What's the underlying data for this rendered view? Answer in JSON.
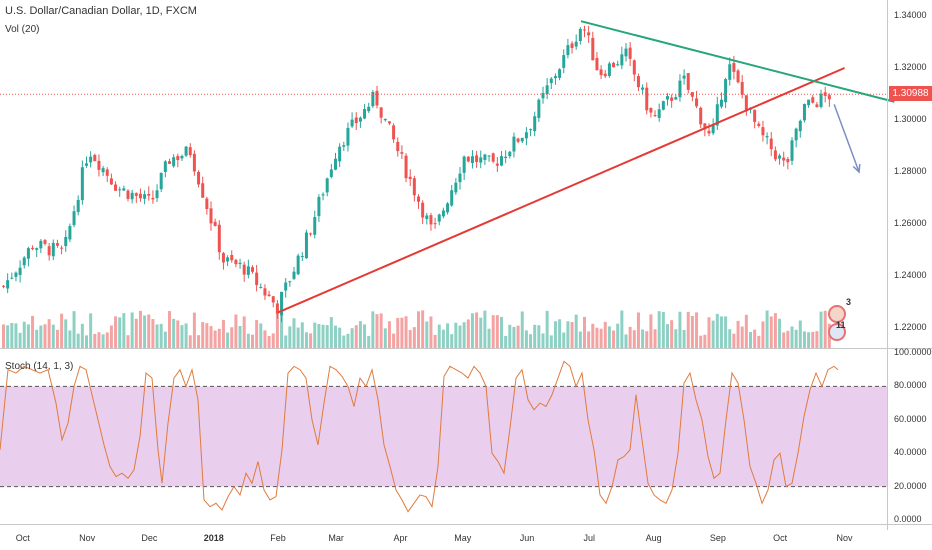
{
  "header": {
    "title": "U.S. Dollar/Canadian Dollar, 1D, FXCM",
    "volume_label": "Vol (20)",
    "stoch_label": "Stoch (14, 1, 3)"
  },
  "price_badge": "1.30988",
  "events": {
    "ca_count": "3",
    "us_count": "11"
  },
  "chart_data": [
    {
      "type": "candlestick",
      "title": "U.S. Dollar/Canadian Dollar, 1D, FXCM",
      "y_ticks": [
        "1.34000",
        "1.32000",
        "1.30000",
        "1.28000",
        "1.26000",
        "1.24000",
        "1.22000"
      ],
      "x_ticks": [
        "Oct",
        "Nov",
        "Dec",
        "2018",
        "Feb",
        "Mar",
        "Apr",
        "May",
        "Jun",
        "Jul",
        "Aug",
        "Sep",
        "Oct",
        "Nov"
      ],
      "ylim": [
        1.215,
        1.345
      ],
      "last_price": 1.30988,
      "approx_closes": [
        {
          "date": "2017-09-20",
          "close": 1.235
        },
        {
          "date": "2017-10-05",
          "close": 1.252
        },
        {
          "date": "2017-10-20",
          "close": 1.249
        },
        {
          "date": "2017-11-01",
          "close": 1.289
        },
        {
          "date": "2017-11-15",
          "close": 1.274
        },
        {
          "date": "2017-12-01",
          "close": 1.268
        },
        {
          "date": "2017-12-10",
          "close": 1.285
        },
        {
          "date": "2017-12-20",
          "close": 1.288
        },
        {
          "date": "2018-01-05",
          "close": 1.246
        },
        {
          "date": "2018-01-15",
          "close": 1.243
        },
        {
          "date": "2018-01-31",
          "close": 1.228
        },
        {
          "date": "2018-02-15",
          "close": 1.256
        },
        {
          "date": "2018-03-01",
          "close": 1.29
        },
        {
          "date": "2018-03-19",
          "close": 1.309
        },
        {
          "date": "2018-03-30",
          "close": 1.288
        },
        {
          "date": "2018-04-16",
          "close": 1.256
        },
        {
          "date": "2018-05-01",
          "close": 1.286
        },
        {
          "date": "2018-05-15",
          "close": 1.283
        },
        {
          "date": "2018-06-01",
          "close": 1.297
        },
        {
          "date": "2018-06-10",
          "close": 1.312
        },
        {
          "date": "2018-06-27",
          "close": 1.337
        },
        {
          "date": "2018-07-05",
          "close": 1.318
        },
        {
          "date": "2018-07-18",
          "close": 1.325
        },
        {
          "date": "2018-07-31",
          "close": 1.3
        },
        {
          "date": "2018-08-15",
          "close": 1.315
        },
        {
          "date": "2018-08-28",
          "close": 1.292
        },
        {
          "date": "2018-09-05",
          "close": 1.322
        },
        {
          "date": "2018-09-20",
          "close": 1.295
        },
        {
          "date": "2018-10-03",
          "close": 1.282
        },
        {
          "date": "2018-10-12",
          "close": 1.305
        },
        {
          "date": "2018-10-25",
          "close": 1.30988
        }
      ],
      "trendlines": [
        {
          "color": "#e53935",
          "from": {
            "date": "2018-02-01",
            "price": 1.226
          },
          "to": {
            "date": "2018-11-01",
            "price": 1.32
          }
        },
        {
          "color": "#26a67a",
          "from": {
            "date": "2018-06-27",
            "price": 1.338
          },
          "to": {
            "date": "2018-11-25",
            "price": 1.307
          }
        }
      ],
      "arrow": {
        "color": "#7b8fc4",
        "from": {
          "date": "2018-10-27",
          "price": 1.306
        },
        "to": {
          "date": "2018-11-08",
          "price": 1.28
        }
      },
      "horizontal_line": {
        "price": 1.30988,
        "color": "#ef5350",
        "style": "dotted"
      },
      "volume": {
        "label": "Vol (20)",
        "up_color": "#8ed1c4",
        "down_color": "#f4a3a3"
      }
    },
    {
      "type": "line",
      "title": "Stoch (14, 1, 3)",
      "y_ticks": [
        "100.0000",
        "80.0000",
        "60.0000",
        "40.0000",
        "20.0000",
        "0.0000"
      ],
      "ylim": [
        0,
        100
      ],
      "bands": {
        "upper": 80,
        "lower": 20,
        "fill": "#e1bee7"
      },
      "series": [
        {
          "color": "#e07b3e",
          "values": [
            [
              0,
              42
            ],
            [
              8,
              90
            ],
            [
              16,
              88
            ],
            [
              24,
              92
            ],
            [
              32,
              90
            ],
            [
              40,
              88
            ],
            [
              48,
              90
            ],
            [
              56,
              70
            ],
            [
              62,
              48
            ],
            [
              68,
              58
            ],
            [
              74,
              80
            ],
            [
              80,
              92
            ],
            [
              86,
              90
            ],
            [
              92,
              75
            ],
            [
              98,
              60
            ],
            [
              104,
              45
            ],
            [
              110,
              32
            ],
            [
              116,
              26
            ],
            [
              122,
              28
            ],
            [
              128,
              25
            ],
            [
              134,
              30
            ],
            [
              140,
              50
            ],
            [
              146,
              88
            ],
            [
              152,
              85
            ],
            [
              158,
              42
            ],
            [
              162,
              22
            ],
            [
              168,
              58
            ],
            [
              174,
              85
            ],
            [
              180,
              90
            ],
            [
              186,
              80
            ],
            [
              192,
              90
            ],
            [
              198,
              72
            ],
            [
              204,
              12
            ],
            [
              210,
              8
            ],
            [
              216,
              10
            ],
            [
              222,
              6
            ],
            [
              228,
              14
            ],
            [
              234,
              20
            ],
            [
              240,
              15
            ],
            [
              246,
              28
            ],
            [
              252,
              22
            ],
            [
              258,
              35
            ],
            [
              264,
              18
            ],
            [
              270,
              12
            ],
            [
              276,
              14
            ],
            [
              282,
              42
            ],
            [
              288,
              88
            ],
            [
              294,
              92
            ],
            [
              300,
              90
            ],
            [
              306,
              85
            ],
            [
              312,
              60
            ],
            [
              318,
              45
            ],
            [
              324,
              70
            ],
            [
              330,
              92
            ],
            [
              336,
              90
            ],
            [
              342,
              86
            ],
            [
              348,
              80
            ],
            [
              354,
              68
            ],
            [
              360,
              85
            ],
            [
              366,
              80
            ],
            [
              372,
              90
            ],
            [
              378,
              72
            ],
            [
              384,
              45
            ],
            [
              390,
              32
            ],
            [
              396,
              18
            ],
            [
              402,
              12
            ],
            [
              408,
              5
            ],
            [
              414,
              10
            ],
            [
              420,
              15
            ],
            [
              426,
              14
            ],
            [
              432,
              8
            ],
            [
              438,
              32
            ],
            [
              444,
              86
            ],
            [
              450,
              92
            ],
            [
              456,
              90
            ],
            [
              462,
              88
            ],
            [
              468,
              85
            ],
            [
              474,
              92
            ],
            [
              480,
              88
            ],
            [
              486,
              80
            ],
            [
              492,
              40
            ],
            [
              498,
              35
            ],
            [
              504,
              28
            ],
            [
              510,
              55
            ],
            [
              516,
              85
            ],
            [
              522,
              90
            ],
            [
              528,
              72
            ],
            [
              534,
              66
            ],
            [
              540,
              70
            ],
            [
              546,
              68
            ],
            [
              552,
              75
            ],
            [
              558,
              85
            ],
            [
              564,
              95
            ],
            [
              570,
              92
            ],
            [
              576,
              80
            ],
            [
              582,
              88
            ],
            [
              588,
              60
            ],
            [
              594,
              42
            ],
            [
              600,
              15
            ],
            [
              606,
              10
            ],
            [
              612,
              20
            ],
            [
              618,
              36
            ],
            [
              624,
              38
            ],
            [
              630,
              42
            ],
            [
              636,
              75
            ],
            [
              642,
              48
            ],
            [
              648,
              22
            ],
            [
              654,
              15
            ],
            [
              660,
              12
            ],
            [
              666,
              10
            ],
            [
              672,
              18
            ],
            [
              678,
              40
            ],
            [
              684,
              82
            ],
            [
              690,
              88
            ],
            [
              696,
              72
            ],
            [
              702,
              60
            ],
            [
              708,
              38
            ],
            [
              714,
              25
            ],
            [
              720,
              28
            ],
            [
              726,
              60
            ],
            [
              732,
              88
            ],
            [
              738,
              82
            ],
            [
              744,
              60
            ],
            [
              750,
              32
            ],
            [
              756,
              22
            ],
            [
              762,
              10
            ],
            [
              768,
              18
            ],
            [
              774,
              36
            ],
            [
              780,
              40
            ],
            [
              786,
              20
            ],
            [
              792,
              22
            ],
            [
              798,
              40
            ],
            [
              804,
              62
            ],
            [
              810,
              78
            ],
            [
              816,
              88
            ],
            [
              822,
              80
            ],
            [
              828,
              90
            ],
            [
              834,
              92
            ],
            [
              838,
              90
            ]
          ]
        }
      ]
    }
  ],
  "colors": {
    "up": "#26a69a",
    "down": "#ef5350",
    "stoch_band": "#e1bee7",
    "stoch_line": "#e07b3e"
  }
}
